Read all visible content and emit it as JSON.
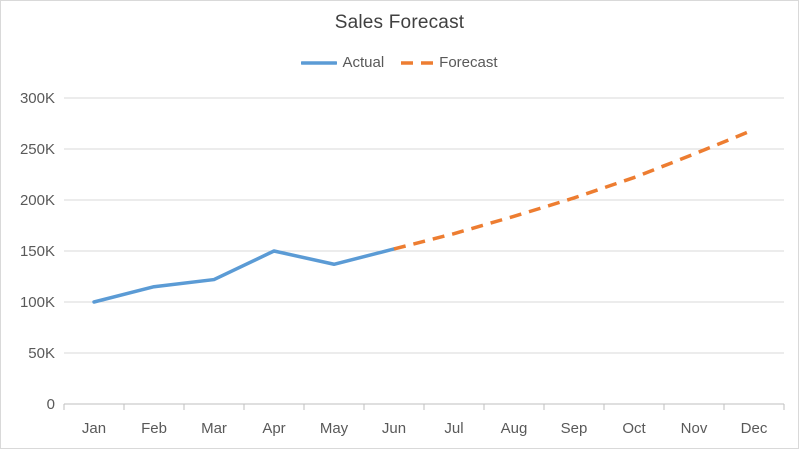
{
  "window": {
    "background": "#ffffff",
    "border_color": "#d9d9d9"
  },
  "chart_data": {
    "type": "line",
    "title": "Sales Forecast",
    "categories": [
      "Jan",
      "Feb",
      "Mar",
      "Apr",
      "May",
      "Jun",
      "Jul",
      "Aug",
      "Sep",
      "Oct",
      "Nov",
      "Dec"
    ],
    "series": [
      {
        "name": "Actual",
        "color": "#5B9BD5",
        "style": "solid",
        "values": [
          100,
          115,
          122,
          150,
          137,
          152,
          null,
          null,
          null,
          null,
          null,
          null
        ]
      },
      {
        "name": "Forecast",
        "color": "#ED7D31",
        "style": "dashed",
        "values": [
          null,
          null,
          null,
          null,
          null,
          152,
          167,
          184,
          202,
          222,
          245,
          269
        ]
      }
    ],
    "values_unit": "thousands (K)",
    "xlabel": "",
    "ylabel": "",
    "ylim": [
      0,
      300
    ],
    "y_tick_step": 50,
    "y_tick_labels": [
      "0",
      "50K",
      "100K",
      "150K",
      "200K",
      "250K",
      "300K"
    ],
    "grid": "horizontal",
    "legend_position": "top",
    "colors": {
      "gridline": "#d9d9d9",
      "axis_line": "#bfbfbf",
      "tick_text": "#595959",
      "title_text": "#404040"
    }
  }
}
